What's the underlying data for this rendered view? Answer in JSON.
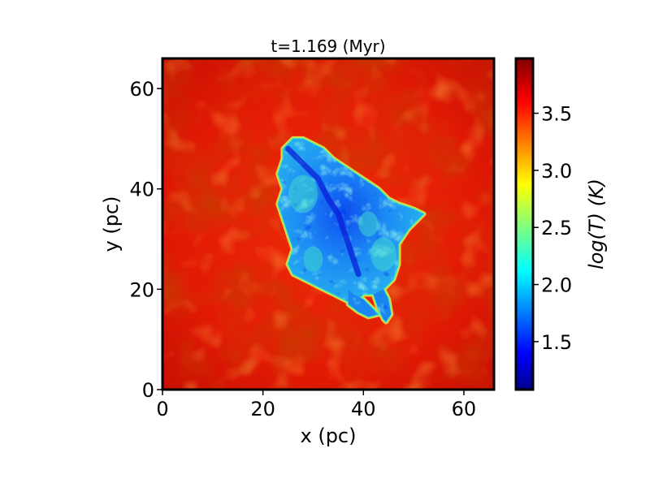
{
  "chart_data": {
    "type": "heatmap",
    "title": "t=1.169 (Myr)",
    "xlabel": "x (pc)",
    "ylabel": "y (pc)",
    "xlim": [
      0,
      66
    ],
    "ylim": [
      0,
      66
    ],
    "x_ticks": [
      0,
      20,
      40,
      60
    ],
    "y_ticks": [
      0,
      20,
      40,
      60
    ],
    "colormap": "jet",
    "colorbar": {
      "label": "log(T) (K)",
      "range": [
        1.08,
        3.98
      ],
      "ticks": [
        1.5,
        2.0,
        2.5,
        3.0,
        3.5
      ],
      "tick_labels": [
        "1.5",
        "2.0",
        "2.5",
        "3.0",
        "3.5"
      ]
    },
    "background_region": {
      "log_T": 3.75,
      "description_color": "red"
    },
    "cold_cloud": {
      "log_T_range": [
        1.2,
        2.4
      ],
      "center": [
        36,
        32
      ],
      "outline": [
        [
          24,
          48
        ],
        [
          26,
          50
        ],
        [
          28,
          50
        ],
        [
          30,
          49
        ],
        [
          32,
          48
        ],
        [
          34,
          46
        ],
        [
          37,
          44
        ],
        [
          40,
          42
        ],
        [
          43,
          40
        ],
        [
          45,
          38
        ],
        [
          47,
          37
        ],
        [
          50,
          36
        ],
        [
          52,
          35
        ],
        [
          49,
          32
        ],
        [
          47,
          29
        ],
        [
          47,
          25
        ],
        [
          46,
          22
        ],
        [
          44,
          20
        ],
        [
          42,
          19
        ],
        [
          40,
          19
        ],
        [
          38,
          17
        ],
        [
          36,
          18
        ],
        [
          34,
          19
        ],
        [
          32,
          20
        ],
        [
          30,
          21
        ],
        [
          28,
          22
        ],
        [
          26,
          23
        ],
        [
          25,
          25
        ],
        [
          26,
          28
        ],
        [
          25,
          31
        ],
        [
          24,
          34
        ],
        [
          23,
          37
        ],
        [
          24,
          40
        ],
        [
          23,
          43
        ],
        [
          24,
          46
        ]
      ],
      "tendrils": [
        [
          [
            37,
            20
          ],
          [
            38,
            19
          ],
          [
            40,
            18
          ],
          [
            42,
            16
          ],
          [
            43,
            15
          ],
          [
            41,
            14.5
          ],
          [
            39,
            15.5
          ],
          [
            37,
            17
          ]
        ],
        [
          [
            42,
            19
          ],
          [
            43,
            16
          ],
          [
            44,
            14
          ],
          [
            44.5,
            13.5
          ],
          [
            45.5,
            15
          ],
          [
            45,
            18
          ],
          [
            44,
            20
          ]
        ]
      ]
    }
  }
}
